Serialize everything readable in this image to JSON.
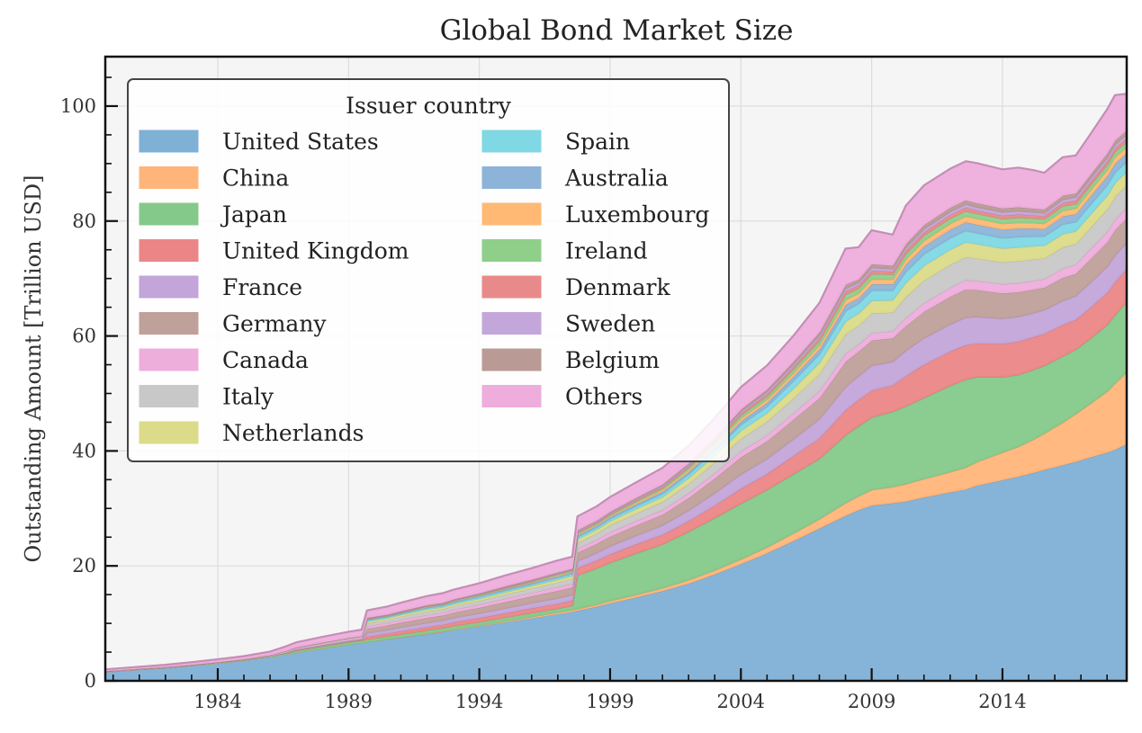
{
  "chart_data": {
    "type": "area",
    "stacked": true,
    "title": "Global Bond Market Size",
    "xlabel": "",
    "ylabel": "Outstanding Amount [Trillion USD]",
    "xlim": [
      1979.7,
      2018.75
    ],
    "ylim": [
      0,
      108.6
    ],
    "x_ticks": [
      1984,
      1989,
      1994,
      1999,
      2004,
      2009,
      2014
    ],
    "x_tick_labels": [
      "1984",
      "1989",
      "1994",
      "1999",
      "2004",
      "2009",
      "2014"
    ],
    "y_ticks": [
      0,
      20,
      40,
      60,
      80,
      100
    ],
    "y_tick_labels": [
      "0",
      "20",
      "40",
      "60",
      "80",
      "100"
    ],
    "grid": true,
    "legend": {
      "title": "Issuer country",
      "placement": "top-left",
      "columns": 2
    },
    "x": [
      1979.7,
      1981,
      1982,
      1983,
      1984,
      1985,
      1986,
      1986.6,
      1987,
      1988,
      1989,
      1989.5,
      1989.7,
      1990.5,
      1991,
      1992,
      1992.6,
      1993,
      1994,
      1995,
      1996,
      1997,
      1997.55,
      1997.75,
      1998.5,
      1999,
      2000,
      2001,
      2002,
      2003,
      2004,
      2005,
      2006,
      2007,
      2008,
      2008.5,
      2009,
      2009.8,
      2010.3,
      2011,
      2012,
      2012.6,
      2013,
      2014,
      2014.6,
      2015.2,
      2015.6,
      2016.3,
      2016.8,
      2017.3,
      2018.0,
      2018.3,
      2018.75
    ],
    "series": [
      {
        "name": "United States",
        "color": "#7fb0d6",
        "values": [
          1.6,
          2.0,
          2.3,
          2.7,
          3.1,
          3.6,
          4.2,
          4.6,
          5.0,
          5.7,
          6.4,
          6.7,
          6.8,
          7.3,
          7.6,
          8.2,
          8.6,
          8.9,
          9.6,
          10.3,
          11.0,
          11.7,
          12.1,
          12.3,
          13.0,
          13.6,
          14.6,
          15.7,
          17.0,
          18.6,
          20.4,
          22.3,
          24.4,
          26.6,
          28.8,
          29.8,
          30.6,
          31.0,
          31.3,
          32.0,
          32.9,
          33.4,
          34.0,
          35.0,
          35.6,
          36.3,
          36.8,
          37.6,
          38.2,
          38.9,
          39.8,
          40.3,
          41.3
        ]
      },
      {
        "name": "China",
        "color": "#ffb57a",
        "values": [
          0,
          0,
          0,
          0,
          0,
          0,
          0,
          0,
          0,
          0,
          0,
          0,
          0,
          0.05,
          0.05,
          0.1,
          0.1,
          0.1,
          0.1,
          0.15,
          0.2,
          0.25,
          0.3,
          0.3,
          0.35,
          0.4,
          0.45,
          0.5,
          0.6,
          0.7,
          0.8,
          1.0,
          1.3,
          1.6,
          2.2,
          2.4,
          2.7,
          2.8,
          3.0,
          3.2,
          3.5,
          3.8,
          4.1,
          4.8,
          5.2,
          5.8,
          6.3,
          7.4,
          8.3,
          9.2,
          10.6,
          11.5,
          12.5
        ]
      },
      {
        "name": "Japan",
        "color": "#85c98a",
        "values": [
          0.1,
          0.1,
          0.1,
          0.1,
          0.15,
          0.15,
          0.2,
          0.25,
          0.3,
          0.35,
          0.4,
          0.4,
          0.45,
          0.5,
          0.5,
          0.55,
          0.55,
          0.6,
          0.6,
          0.65,
          0.7,
          0.7,
          0.75,
          5.8,
          6.3,
          6.6,
          7.2,
          7.6,
          8.4,
          9.1,
          9.7,
          10.0,
          10.3,
          10.5,
          11.8,
          12.2,
          12.6,
          13.1,
          13.5,
          14.1,
          15.0,
          15.3,
          14.8,
          13.1,
          12.5,
          12.1,
          11.8,
          11.5,
          11.2,
          11.3,
          11.6,
          11.9,
          12.2
        ]
      },
      {
        "name": "United Kingdom",
        "color": "#ec8686",
        "values": [
          0,
          0,
          0,
          0,
          0,
          0,
          0,
          0.05,
          0.1,
          0.1,
          0.1,
          0.1,
          0.5,
          0.5,
          0.55,
          0.6,
          0.6,
          0.65,
          0.7,
          0.75,
          0.8,
          0.85,
          0.9,
          1.3,
          1.4,
          1.5,
          1.6,
          1.7,
          1.9,
          2.2,
          2.6,
          2.8,
          3.2,
          3.6,
          4.4,
          4.6,
          4.7,
          4.6,
          5.3,
          5.8,
          6.0,
          6.0,
          5.9,
          5.8,
          5.8,
          5.7,
          5.6,
          5.5,
          5.2,
          5.4,
          5.6,
          5.8,
          5.7
        ]
      },
      {
        "name": "France",
        "color": "#c3a5d9",
        "values": [
          0,
          0,
          0,
          0,
          0,
          0,
          0,
          0.05,
          0.1,
          0.1,
          0.1,
          0.1,
          0.6,
          0.6,
          0.65,
          0.7,
          0.7,
          0.75,
          0.8,
          0.85,
          0.9,
          0.95,
          1.0,
          1.2,
          1.3,
          1.4,
          1.5,
          1.6,
          1.8,
          2.1,
          2.5,
          2.6,
          2.9,
          3.3,
          4.0,
          4.1,
          4.3,
          4.1,
          4.4,
          4.6,
          4.7,
          4.8,
          4.6,
          4.4,
          4.3,
          4.2,
          4.1,
          4.2,
          4.1,
          4.3,
          4.5,
          4.6,
          4.6
        ]
      },
      {
        "name": "Germany",
        "color": "#c0a09a",
        "values": [
          0,
          0,
          0,
          0,
          0,
          0,
          0,
          0.05,
          0.1,
          0.1,
          0.1,
          0.1,
          0.8,
          0.8,
          0.85,
          0.9,
          0.9,
          0.95,
          1.0,
          1.1,
          1.2,
          1.3,
          1.3,
          1.5,
          1.6,
          1.7,
          1.8,
          1.9,
          2.2,
          2.6,
          3.0,
          3.1,
          3.4,
          3.7,
          4.4,
          4.3,
          4.4,
          4.1,
          4.3,
          4.6,
          4.8,
          4.9,
          4.7,
          4.4,
          4.3,
          4.1,
          3.9,
          4.0,
          3.9,
          4.1,
          4.3,
          4.4,
          4.3
        ]
      },
      {
        "name": "Canada",
        "color": "#eeaedc",
        "values": [
          0.1,
          0.1,
          0.1,
          0.1,
          0.1,
          0.1,
          0.15,
          0.2,
          0.2,
          0.2,
          0.25,
          0.25,
          0.45,
          0.45,
          0.5,
          0.5,
          0.5,
          0.5,
          0.55,
          0.6,
          0.6,
          0.65,
          0.65,
          0.7,
          0.7,
          0.75,
          0.75,
          0.8,
          0.85,
          0.9,
          1.0,
          1.0,
          1.1,
          1.2,
          1.4,
          1.2,
          1.3,
          1.2,
          1.4,
          1.5,
          1.6,
          1.6,
          1.6,
          1.6,
          1.6,
          1.5,
          1.5,
          1.6,
          1.6,
          1.7,
          1.8,
          1.8,
          1.8
        ]
      },
      {
        "name": "Italy",
        "color": "#c8c8c8",
        "values": [
          0,
          0,
          0,
          0,
          0,
          0,
          0,
          0.05,
          0.05,
          0.1,
          0.1,
          0.1,
          0.5,
          0.5,
          0.55,
          0.6,
          0.6,
          0.6,
          0.65,
          0.7,
          0.75,
          0.8,
          0.85,
          1.0,
          1.1,
          1.2,
          1.3,
          1.4,
          1.6,
          1.9,
          2.2,
          2.4,
          2.6,
          3.0,
          3.4,
          3.3,
          3.4,
          3.3,
          3.7,
          3.9,
          4.0,
          4.0,
          3.9,
          3.8,
          3.8,
          3.7,
          3.6,
          3.7,
          3.6,
          3.7,
          3.9,
          4.0,
          3.9
        ]
      },
      {
        "name": "Netherlands",
        "color": "#dbdb8a",
        "values": [
          0,
          0,
          0,
          0,
          0,
          0,
          0,
          0.05,
          0.05,
          0.1,
          0.1,
          0.1,
          0.3,
          0.3,
          0.3,
          0.35,
          0.35,
          0.35,
          0.4,
          0.4,
          0.45,
          0.5,
          0.5,
          0.6,
          0.65,
          0.7,
          0.8,
          0.85,
          1.0,
          1.2,
          1.4,
          1.5,
          1.7,
          1.9,
          2.2,
          2.1,
          2.2,
          2.1,
          2.4,
          2.6,
          2.6,
          2.6,
          2.5,
          2.4,
          2.4,
          2.3,
          2.2,
          2.3,
          2.2,
          2.3,
          2.4,
          2.4,
          2.4
        ]
      },
      {
        "name": "Spain",
        "color": "#7fd8e4",
        "values": [
          0,
          0,
          0,
          0,
          0,
          0,
          0,
          0,
          0,
          0,
          0,
          0,
          0.2,
          0.2,
          0.2,
          0.25,
          0.25,
          0.25,
          0.3,
          0.3,
          0.3,
          0.35,
          0.35,
          0.4,
          0.4,
          0.45,
          0.5,
          0.55,
          0.65,
          0.8,
          1.0,
          1.1,
          1.3,
          1.5,
          1.8,
          1.7,
          1.8,
          1.7,
          1.9,
          2.0,
          2.0,
          2.0,
          1.9,
          1.8,
          1.8,
          1.7,
          1.6,
          1.7,
          1.6,
          1.7,
          1.8,
          1.8,
          1.7
        ]
      },
      {
        "name": "Australia",
        "color": "#8db4d8",
        "values": [
          0,
          0,
          0,
          0,
          0,
          0,
          0,
          0,
          0,
          0,
          0,
          0,
          0.15,
          0.15,
          0.15,
          0.15,
          0.15,
          0.2,
          0.2,
          0.2,
          0.2,
          0.25,
          0.25,
          0.3,
          0.3,
          0.3,
          0.35,
          0.4,
          0.45,
          0.55,
          0.65,
          0.7,
          0.8,
          0.9,
          1.1,
          1.0,
          1.1,
          1.1,
          1.3,
          1.4,
          1.5,
          1.5,
          1.5,
          1.5,
          1.5,
          1.4,
          1.3,
          1.4,
          1.4,
          1.5,
          1.6,
          1.6,
          1.5
        ]
      },
      {
        "name": "Luxembourg",
        "color": "#ffb974",
        "values": [
          0,
          0,
          0,
          0,
          0,
          0,
          0,
          0,
          0,
          0,
          0,
          0,
          0.05,
          0.05,
          0.05,
          0.1,
          0.1,
          0.1,
          0.1,
          0.1,
          0.15,
          0.15,
          0.15,
          0.2,
          0.2,
          0.2,
          0.25,
          0.3,
          0.35,
          0.4,
          0.5,
          0.55,
          0.6,
          0.7,
          0.85,
          0.8,
          0.85,
          0.8,
          0.9,
          0.95,
          1.0,
          1.0,
          1.0,
          1.0,
          1.0,
          0.95,
          0.9,
          0.95,
          0.95,
          1.0,
          1.05,
          1.1,
          1.05
        ]
      },
      {
        "name": "Ireland",
        "color": "#8fcf8a",
        "values": [
          0,
          0,
          0,
          0,
          0,
          0,
          0,
          0,
          0,
          0,
          0,
          0,
          0.05,
          0.05,
          0.05,
          0.05,
          0.05,
          0.1,
          0.1,
          0.1,
          0.1,
          0.15,
          0.15,
          0.2,
          0.2,
          0.2,
          0.25,
          0.3,
          0.35,
          0.4,
          0.5,
          0.55,
          0.65,
          0.75,
          0.9,
          0.85,
          0.9,
          0.85,
          0.9,
          0.9,
          0.9,
          0.9,
          0.85,
          0.85,
          0.85,
          0.8,
          0.8,
          0.8,
          0.8,
          0.85,
          0.9,
          0.9,
          0.9
        ]
      },
      {
        "name": "Denmark",
        "color": "#e98a8a",
        "values": [
          0,
          0,
          0,
          0,
          0,
          0,
          0,
          0,
          0,
          0,
          0,
          0,
          0.05,
          0.05,
          0.05,
          0.05,
          0.05,
          0.05,
          0.05,
          0.1,
          0.1,
          0.1,
          0.1,
          0.15,
          0.15,
          0.15,
          0.2,
          0.2,
          0.25,
          0.3,
          0.35,
          0.4,
          0.45,
          0.5,
          0.6,
          0.55,
          0.6,
          0.55,
          0.6,
          0.6,
          0.65,
          0.65,
          0.6,
          0.6,
          0.6,
          0.55,
          0.55,
          0.6,
          0.6,
          0.6,
          0.65,
          0.65,
          0.65
        ]
      },
      {
        "name": "Sweden",
        "color": "#c4a7da",
        "values": [
          0,
          0,
          0,
          0,
          0,
          0,
          0,
          0,
          0,
          0,
          0,
          0,
          0.05,
          0.05,
          0.05,
          0.05,
          0.05,
          0.05,
          0.05,
          0.1,
          0.1,
          0.1,
          0.1,
          0.15,
          0.15,
          0.15,
          0.15,
          0.2,
          0.2,
          0.25,
          0.3,
          0.35,
          0.4,
          0.45,
          0.5,
          0.45,
          0.5,
          0.45,
          0.5,
          0.55,
          0.55,
          0.55,
          0.55,
          0.55,
          0.55,
          0.5,
          0.5,
          0.55,
          0.55,
          0.55,
          0.6,
          0.6,
          0.6
        ]
      },
      {
        "name": "Belgium",
        "color": "#b99a94",
        "values": [
          0,
          0,
          0,
          0,
          0,
          0,
          0,
          0,
          0,
          0,
          0,
          0,
          0.1,
          0.1,
          0.1,
          0.1,
          0.1,
          0.1,
          0.1,
          0.15,
          0.15,
          0.15,
          0.15,
          0.2,
          0.2,
          0.2,
          0.25,
          0.25,
          0.3,
          0.35,
          0.4,
          0.45,
          0.5,
          0.55,
          0.65,
          0.6,
          0.65,
          0.6,
          0.65,
          0.7,
          0.7,
          0.7,
          0.7,
          0.7,
          0.7,
          0.65,
          0.65,
          0.7,
          0.7,
          0.7,
          0.75,
          0.75,
          0.75
        ]
      },
      {
        "name": "Others",
        "color": "#eeaddc",
        "values": [
          0.2,
          0.25,
          0.3,
          0.35,
          0.4,
          0.45,
          0.55,
          0.7,
          0.8,
          0.9,
          1.0,
          1.05,
          1.2,
          1.3,
          1.4,
          1.5,
          1.6,
          1.6,
          1.7,
          1.8,
          1.9,
          2.0,
          2.0,
          2.3,
          2.4,
          2.5,
          2.6,
          2.8,
          3.0,
          3.4,
          3.8,
          4.1,
          4.4,
          5.0,
          6.2,
          5.5,
          5.8,
          5.3,
          6.6,
          6.8,
          6.7,
          6.7,
          6.9,
          6.7,
          6.8,
          6.6,
          6.3,
          6.6,
          6.5,
          6.9,
          7.6,
          7.8,
          6.3
        ]
      }
    ]
  }
}
